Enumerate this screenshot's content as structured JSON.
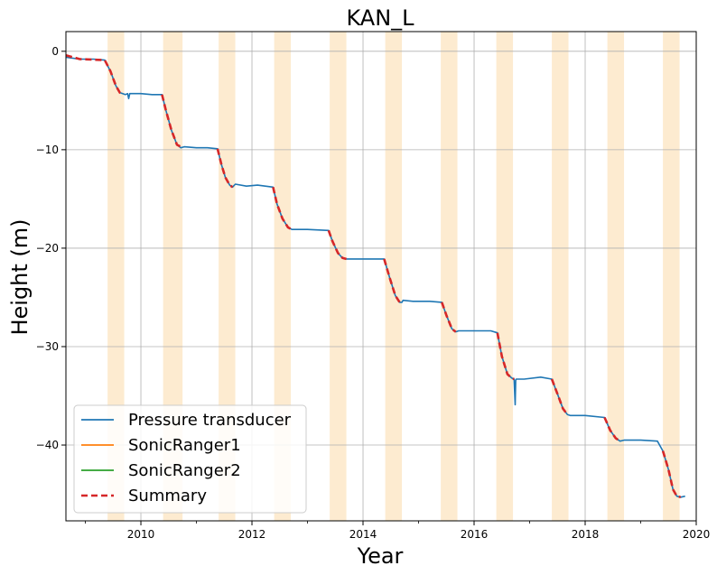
{
  "chart_data": {
    "type": "line",
    "title": "KAN_L",
    "xlabel": "Year",
    "ylabel": "Height (m)",
    "xlim": [
      2008.65,
      2020.0
    ],
    "ylim": [
      -47.7,
      2.0
    ],
    "xticks": [
      {
        "value": 2010,
        "label": "2010"
      },
      {
        "value": 2012,
        "label": "2012"
      },
      {
        "value": 2014,
        "label": "2014"
      },
      {
        "value": 2016,
        "label": "2016"
      },
      {
        "value": 2018,
        "label": "2018"
      },
      {
        "value": 2020,
        "label": "2020"
      }
    ],
    "yticks": [
      {
        "value": 0,
        "label": "0"
      },
      {
        "value": -10,
        "label": "−10"
      },
      {
        "value": -20,
        "label": "−20"
      },
      {
        "value": -30,
        "label": "−30"
      },
      {
        "value": -40,
        "label": "−40"
      }
    ],
    "grid": true,
    "legend_position": "lower-left",
    "melt_seasons": [
      [
        2009.4,
        2009.7
      ],
      [
        2010.4,
        2010.75
      ],
      [
        2011.4,
        2011.7
      ],
      [
        2012.4,
        2012.7
      ],
      [
        2013.4,
        2013.7
      ],
      [
        2014.4,
        2014.7
      ],
      [
        2015.4,
        2015.7
      ],
      [
        2016.4,
        2016.7
      ],
      [
        2017.4,
        2017.7
      ],
      [
        2018.4,
        2018.7
      ],
      [
        2019.4,
        2019.7
      ]
    ],
    "season_color": "#fdebd0",
    "series": [
      {
        "name": "Pressure transducer",
        "color": "#1f77b4",
        "style": "solid",
        "x": [
          2008.65,
          2008.9,
          2009.15,
          2009.35,
          2009.45,
          2009.55,
          2009.62,
          2009.72,
          2009.76,
          2009.78,
          2009.8,
          2010.0,
          2010.2,
          2010.38,
          2010.45,
          2010.55,
          2010.65,
          2010.72,
          2010.78,
          2011.0,
          2011.2,
          2011.38,
          2011.45,
          2011.52,
          2011.6,
          2011.65,
          2011.7,
          2011.9,
          2012.1,
          2012.38,
          2012.45,
          2012.55,
          2012.65,
          2012.72,
          2013.0,
          2013.38,
          2013.45,
          2013.55,
          2013.63,
          2013.7,
          2014.0,
          2014.2,
          2014.38,
          2014.48,
          2014.58,
          2014.66,
          2014.7,
          2014.72,
          2014.9,
          2015.2,
          2015.42,
          2015.5,
          2015.6,
          2015.67,
          2015.72,
          2016.0,
          2016.3,
          2016.42,
          2016.5,
          2016.6,
          2016.68,
          2016.72,
          2016.74,
          2016.75,
          2016.76,
          2016.9,
          2017.2,
          2017.4,
          2017.5,
          2017.6,
          2017.68,
          2017.73,
          2018.0,
          2018.35,
          2018.45,
          2018.55,
          2018.63,
          2018.7,
          2019.0,
          2019.3,
          2019.4,
          2019.5,
          2019.58,
          2019.65,
          2019.72,
          2019.8
        ],
        "y": [
          -0.6,
          -0.8,
          -0.8,
          -0.9,
          -2.0,
          -3.5,
          -4.2,
          -4.4,
          -4.3,
          -4.8,
          -4.3,
          -4.3,
          -4.4,
          -4.4,
          -6.0,
          -8.0,
          -9.5,
          -9.8,
          -9.7,
          -9.8,
          -9.8,
          -9.9,
          -11.5,
          -12.8,
          -13.6,
          -13.8,
          -13.5,
          -13.7,
          -13.6,
          -13.8,
          -15.5,
          -17.0,
          -17.9,
          -18.1,
          -18.1,
          -18.2,
          -19.3,
          -20.5,
          -21.0,
          -21.1,
          -21.1,
          -21.1,
          -21.1,
          -23.0,
          -24.8,
          -25.5,
          -25.5,
          -25.3,
          -25.4,
          -25.4,
          -25.5,
          -26.8,
          -28.2,
          -28.5,
          -28.4,
          -28.4,
          -28.4,
          -28.6,
          -31.0,
          -32.8,
          -33.2,
          -33.3,
          -35.9,
          -33.4,
          -33.3,
          -33.3,
          -33.1,
          -33.3,
          -34.8,
          -36.3,
          -36.9,
          -37.0,
          -37.0,
          -37.2,
          -38.5,
          -39.3,
          -39.6,
          -39.5,
          -39.5,
          -39.6,
          -40.6,
          -42.5,
          -44.5,
          -45.2,
          -45.3,
          -45.2
        ]
      },
      {
        "name": "SonicRanger1",
        "color": "#ff7f0e",
        "style": "solid",
        "x": [],
        "y": []
      },
      {
        "name": "SonicRanger2",
        "color": "#2ca02c",
        "style": "solid",
        "x": [],
        "y": []
      },
      {
        "name": "Summary",
        "color": "#d62728",
        "style": "dashed",
        "segments": [
          {
            "x": [
              2008.65,
              2008.9,
              2009.15,
              2009.35,
              2009.45,
              2009.55,
              2009.62,
              2009.68
            ],
            "y": [
              -0.4,
              -0.8,
              -0.85,
              -0.9,
              -2.0,
              -3.5,
              -4.2,
              -4.3
            ]
          },
          {
            "x": [
              2010.38,
              2010.45,
              2010.55,
              2010.65,
              2010.72
            ],
            "y": [
              -4.4,
              -6.0,
              -8.0,
              -9.5,
              -9.7
            ]
          },
          {
            "x": [
              2011.38,
              2011.45,
              2011.52,
              2011.6,
              2011.65
            ],
            "y": [
              -9.9,
              -11.5,
              -12.8,
              -13.6,
              -13.8
            ]
          },
          {
            "x": [
              2012.38,
              2012.45,
              2012.55,
              2012.65,
              2012.72
            ],
            "y": [
              -13.8,
              -15.5,
              -17.0,
              -17.9,
              -18.1
            ]
          },
          {
            "x": [
              2013.38,
              2013.45,
              2013.55,
              2013.63,
              2013.7
            ],
            "y": [
              -18.2,
              -19.3,
              -20.5,
              -21.0,
              -21.1
            ]
          },
          {
            "x": [
              2014.38,
              2014.48,
              2014.58,
              2014.66,
              2014.7
            ],
            "y": [
              -21.1,
              -23.0,
              -24.8,
              -25.5,
              -25.5
            ]
          },
          {
            "x": [
              2015.42,
              2015.5,
              2015.6,
              2015.67
            ],
            "y": [
              -25.5,
              -26.8,
              -28.2,
              -28.5
            ]
          },
          {
            "x": [
              2016.42,
              2016.5,
              2016.6,
              2016.68,
              2016.72
            ],
            "y": [
              -28.6,
              -31.0,
              -32.8,
              -33.2,
              -33.3
            ]
          },
          {
            "x": [
              2017.4,
              2017.5,
              2017.6,
              2017.68
            ],
            "y": [
              -33.3,
              -34.8,
              -36.3,
              -36.9
            ]
          },
          {
            "x": [
              2018.35,
              2018.45,
              2018.55,
              2018.63
            ],
            "y": [
              -37.2,
              -38.5,
              -39.3,
              -39.6
            ]
          },
          {
            "x": [
              2019.4,
              2019.5,
              2019.58,
              2019.65,
              2019.72
            ],
            "y": [
              -40.6,
              -42.5,
              -44.5,
              -45.2,
              -45.3
            ]
          }
        ]
      }
    ]
  }
}
